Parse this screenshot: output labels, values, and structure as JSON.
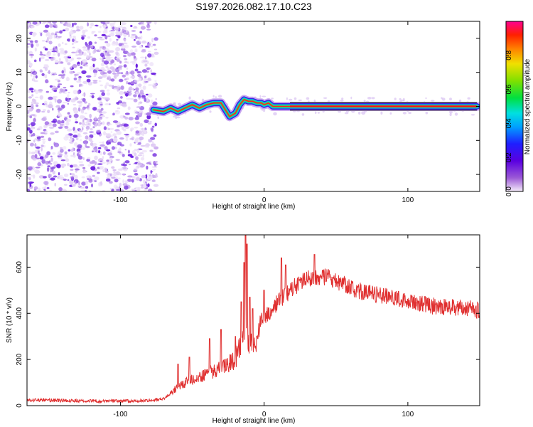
{
  "title": "S197.2026.082.17.10.C23",
  "colors": {
    "signal": "#e03030",
    "speckle": "#8a2be2",
    "axis": "#000000"
  },
  "chart_data": [
    {
      "type": "heatmap",
      "title": "S197.2026.082.17.10.C23",
      "xlabel": "Height of straight line (km)",
      "ylabel": "Frequency (Hz)",
      "xlim": [
        -165,
        150
      ],
      "ylim": [
        -25,
        25
      ],
      "xticks": [
        -100,
        0,
        100
      ],
      "xtick_labels": [
        "-100",
        "0",
        "100"
      ],
      "yticks": [
        -20,
        -10,
        0,
        10,
        20
      ],
      "ytick_labels": [
        "-20",
        "-10",
        "0",
        "10",
        "20"
      ],
      "noise_region_x": [
        -165,
        -75
      ],
      "ridge": {
        "x": [
          -77,
          -70,
          -65,
          -60,
          -55,
          -50,
          -45,
          -40,
          -35,
          -30,
          -27,
          -24,
          -20,
          -17,
          -14,
          -11,
          -8,
          -5,
          -2,
          0,
          3,
          6,
          10,
          14,
          18,
          40,
          60,
          80,
          100,
          120,
          140,
          148
        ],
        "frequency": [
          -1,
          -1.5,
          -0.5,
          -1.5,
          -0.5,
          0.5,
          -0.5,
          0.5,
          1,
          1,
          -1,
          -3,
          -2,
          0.5,
          2,
          1.5,
          1.5,
          1,
          1,
          0.5,
          1,
          0,
          0,
          0,
          0,
          0,
          0,
          0,
          0,
          0,
          0,
          0
        ]
      },
      "colorbar": {
        "label": "Normalized spectral amplitude",
        "range": [
          0,
          1
        ],
        "ticks": [
          0.0,
          0.2,
          0.4,
          0.6,
          0.8
        ],
        "tick_labels": [
          "0.0",
          "0.2",
          "0.4",
          "0.6",
          "0.8"
        ]
      }
    },
    {
      "type": "line",
      "xlabel": "Height of straight line (km)",
      "ylabel": "SNR (10 * v/v)",
      "xlim": [
        -165,
        150
      ],
      "ylim": [
        0,
        740
      ],
      "xticks": [
        -100,
        0,
        100
      ],
      "xtick_labels": [
        "-100",
        "0",
        "100"
      ],
      "yticks": [
        0,
        200,
        400,
        600
      ],
      "ytick_labels": [
        "0",
        "200",
        "400",
        "600"
      ],
      "series": [
        {
          "name": "SNR",
          "x": [
            -165,
            -140,
            -110,
            -90,
            -80,
            -75,
            -70,
            -65,
            -60,
            -55,
            -50,
            -45,
            -40,
            -35,
            -30,
            -25,
            -20,
            -18,
            -16,
            -15,
            -14,
            -12,
            -10,
            -8,
            -6,
            -5,
            -3,
            0,
            3,
            6,
            10,
            15,
            20,
            25,
            30,
            35,
            40,
            45,
            50,
            55,
            60,
            70,
            80,
            90,
            100,
            110,
            120,
            130,
            140,
            150
          ],
          "values": [
            25,
            22,
            20,
            20,
            22,
            25,
            30,
            55,
            80,
            100,
            110,
            120,
            140,
            150,
            160,
            175,
            200,
            230,
            260,
            300,
            320,
            310,
            270,
            250,
            240,
            260,
            360,
            380,
            400,
            430,
            450,
            480,
            510,
            530,
            550,
            560,
            560,
            555,
            540,
            525,
            510,
            490,
            480,
            470,
            455,
            440,
            430,
            425,
            420,
            415
          ]
        }
      ],
      "spikes": {
        "x": [
          -60,
          -52,
          -38,
          -30,
          -20,
          -16,
          -14,
          -13,
          -12,
          -10,
          -8,
          -5,
          0,
          12,
          15,
          35
        ],
        "values": [
          180,
          210,
          290,
          330,
          300,
          450,
          620,
          750,
          700,
          470,
          420,
          300,
          500,
          640,
          610,
          655
        ]
      }
    }
  ]
}
